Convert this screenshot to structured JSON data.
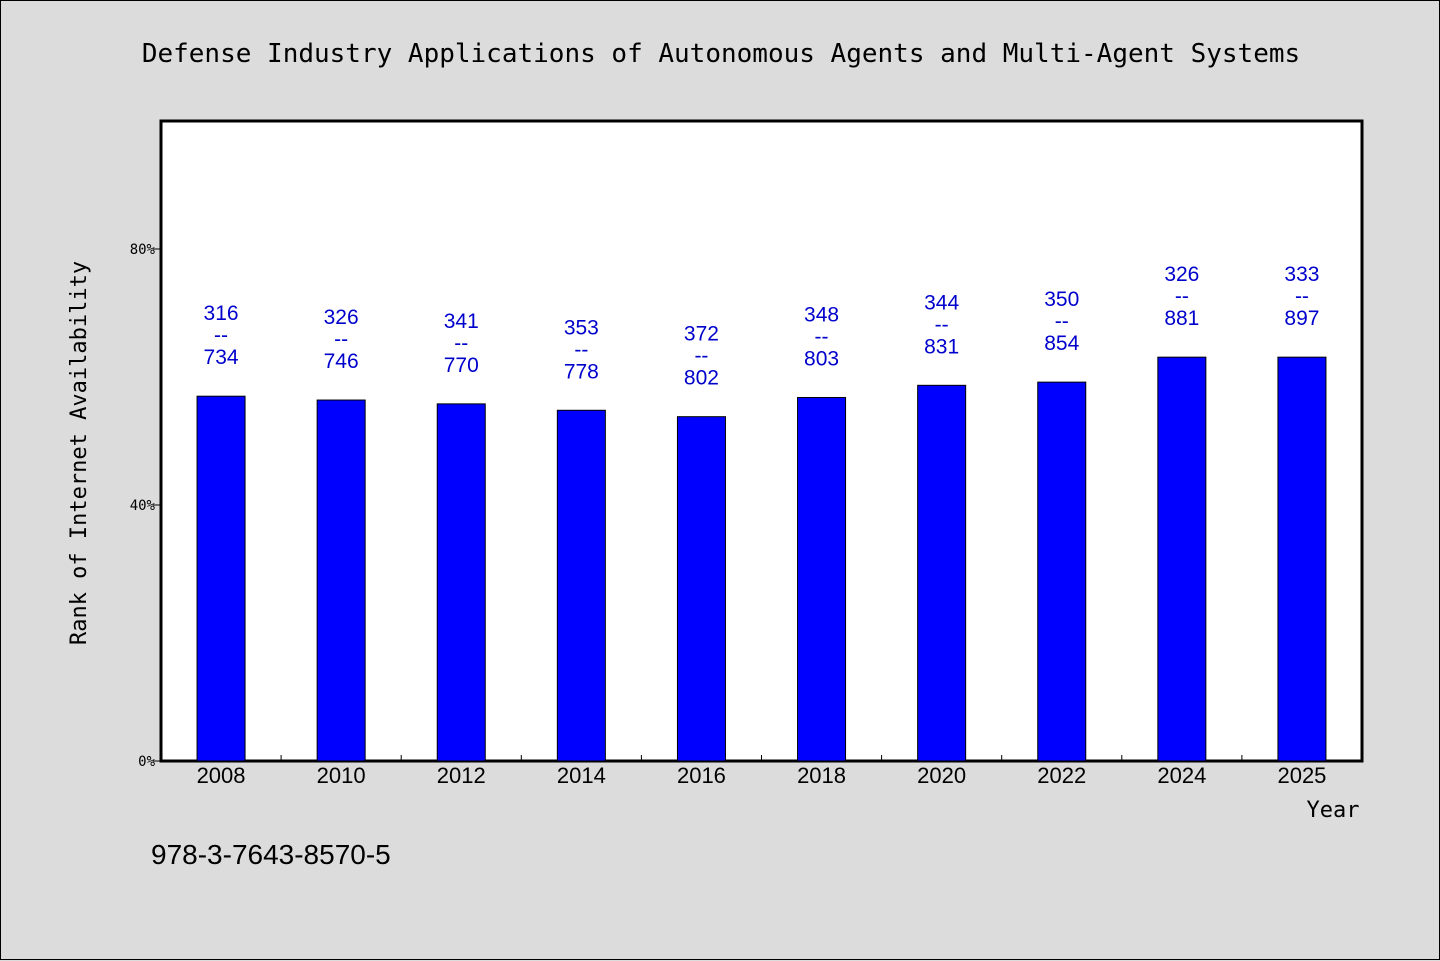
{
  "chart_data": {
    "type": "bar",
    "title": "Defense Industry Applications of Autonomous Agents and Multi-Agent Systems",
    "xlabel": "Year",
    "ylabel": "Rank of Internet Availability",
    "categories": [
      "2008",
      "2010",
      "2012",
      "2014",
      "2016",
      "2018",
      "2020",
      "2022",
      "2024",
      "2025"
    ],
    "values": [
      57.0,
      56.4,
      55.8,
      54.8,
      53.8,
      56.8,
      58.7,
      59.2,
      63.1,
      63.1
    ],
    "data_labels": [
      {
        "top": "316",
        "sep": "--",
        "bottom": "734"
      },
      {
        "top": "326",
        "sep": "--",
        "bottom": "746"
      },
      {
        "top": "341",
        "sep": "--",
        "bottom": "770"
      },
      {
        "top": "353",
        "sep": "--",
        "bottom": "778"
      },
      {
        "top": "372",
        "sep": "--",
        "bottom": "802"
      },
      {
        "top": "348",
        "sep": "--",
        "bottom": "803"
      },
      {
        "top": "344",
        "sep": "--",
        "bottom": "831"
      },
      {
        "top": "350",
        "sep": "--",
        "bottom": "854"
      },
      {
        "top": "326",
        "sep": "--",
        "bottom": "881"
      },
      {
        "top": "333",
        "sep": "--",
        "bottom": "897"
      }
    ],
    "ylim": [
      0,
      100
    ],
    "yticks": [
      0,
      40,
      80
    ],
    "ytick_labels": [
      "0%",
      "40%",
      "80%"
    ],
    "grid": false,
    "bar_color": "#0000ff",
    "label_color": "#0000cc"
  },
  "footer": {
    "isbn": "978-3-7643-8570-5"
  },
  "colors": {
    "background": "#dcdcdc",
    "plot_background": "#ffffff",
    "bar": "#0000ff"
  }
}
